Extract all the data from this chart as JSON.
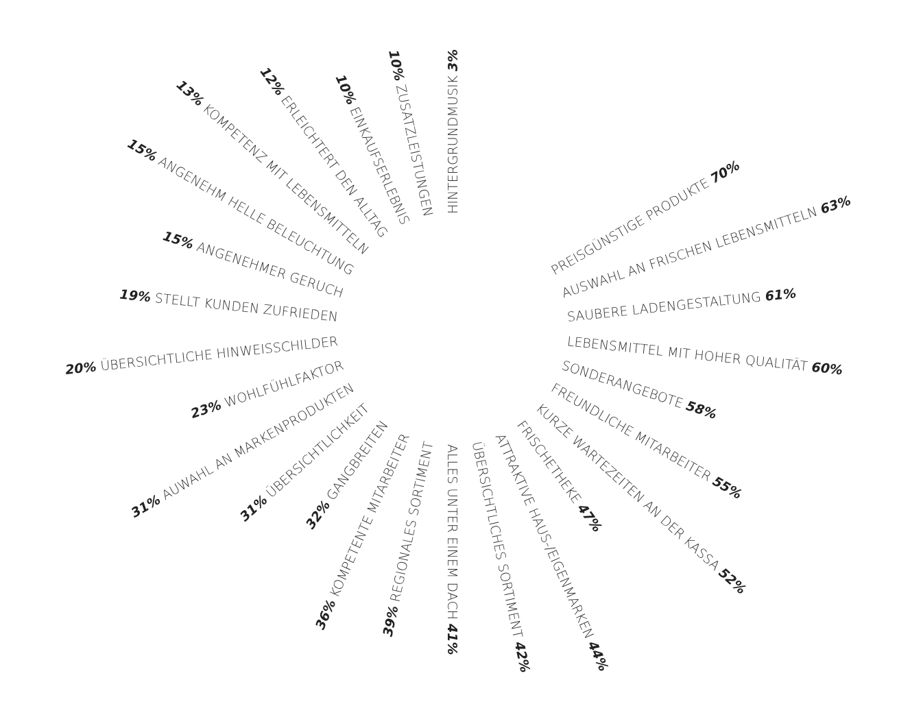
{
  "chart_data": {
    "type": "other",
    "categories": [
      "PREISGÜNSTIGE PRODUKTE",
      "AUSWAHL AN FRISCHEN LEBENSMITTELN",
      "SAUBERE LADENGESTALTUNG",
      "LEBENSMITTEL MIT HOHER QUALITÄT",
      "SONDERANGEBOTE",
      "FREUNDLICHE MITARBEITER",
      "KURZE WARTEZEITEN AN DER KASSA",
      "FRISCHETHEKE",
      "ATTRAKTIVE HAUS-/EIGENMARKEN",
      "ÜBERSICHTLICHES SORTIMENT",
      "ALLES UNTER EINEM DACH",
      "REGIONALES SORTIMENT",
      "KOMPETENTE MITARBEITER",
      "GANGBREITEN",
      "ÜBERSICHTLICHKEIT",
      "AUWAHL AN MARKENPRODUKTEN",
      "WOHLFÜHLFAKTOR",
      "ÜBERSICHTLICHE HINWEISSCHILDER",
      "STELLT KUNDEN ZUFRIEDEN",
      "ANGENEHMER GERUCH",
      "ANGENEHM HELLE BELEUCHTUNG",
      "KOMPETENZ MIT LEBENSMITTELN",
      "ERLEICHTERT DEN ALLTAG",
      "EINKAUFSERLEBNIS",
      "ZUSATZLEISTUNGEN",
      "HINTERGRUNDMUSIK"
    ],
    "values": [
      70,
      63,
      61,
      60,
      58,
      55,
      52,
      47,
      44,
      42,
      41,
      39,
      36,
      32,
      31,
      31,
      23,
      20,
      19,
      15,
      15,
      13,
      12,
      10,
      10,
      3
    ],
    "value_labels": [
      "70%",
      "63%",
      "61%",
      "60%",
      "58%",
      "55%",
      "52%",
      "47%",
      "44%",
      "42%",
      "41%",
      "39%",
      "36%",
      "32%",
      "31%",
      "31%",
      "23%",
      "20%",
      "19%",
      "15%",
      "15%",
      "13%",
      "12%",
      "10%",
      "10%",
      "3%"
    ],
    "color": "#333333"
  }
}
